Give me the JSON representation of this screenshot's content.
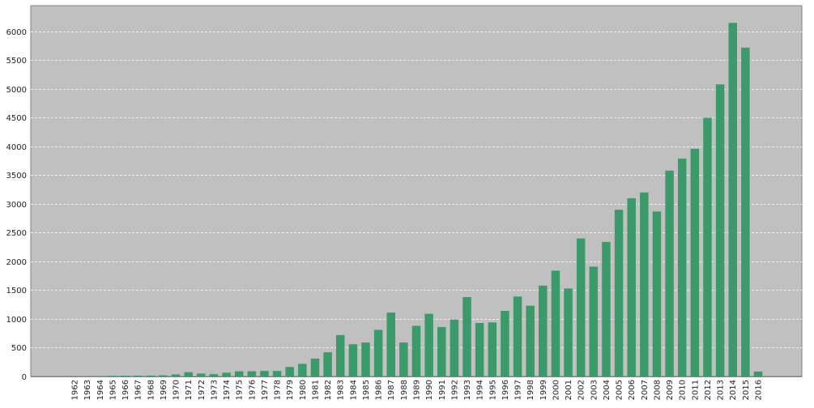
{
  "colors": {
    "plot_background": "#c0c0c0",
    "bar": "#3a9a6a",
    "gridline": "#ffffff",
    "axis": "#808080"
  },
  "chart_data": {
    "type": "bar",
    "title": "",
    "xlabel": "",
    "ylabel": "",
    "ylim": [
      0,
      6450
    ],
    "yticks": [
      0,
      500,
      1000,
      1500,
      2000,
      2500,
      3000,
      3500,
      4000,
      4500,
      5000,
      5500,
      6000
    ],
    "grid": true,
    "legend": "none",
    "categories": [
      "1962",
      "1963",
      "1964",
      "1965",
      "1966",
      "1967",
      "1968",
      "1969",
      "1970",
      "1971",
      "1972",
      "1973",
      "1974",
      "1975",
      "1976",
      "1977",
      "1978",
      "1979",
      "1980",
      "1981",
      "1982",
      "1983",
      "1984",
      "1985",
      "1986",
      "1987",
      "1988",
      "1989",
      "1990",
      "1991",
      "1992",
      "1993",
      "1994",
      "1995",
      "1996",
      "1997",
      "1998",
      "1999",
      "2000",
      "2001",
      "2002",
      "2003",
      "2004",
      "2005",
      "2006",
      "2007",
      "2008",
      "2009",
      "2010",
      "2011",
      "2012",
      "2013",
      "2014",
      "2015",
      "2016"
    ],
    "values": [
      1,
      2,
      3,
      10,
      12,
      13,
      15,
      20,
      35,
      75,
      50,
      40,
      65,
      90,
      90,
      95,
      95,
      165,
      220,
      310,
      420,
      720,
      560,
      590,
      810,
      1110,
      590,
      880,
      1090,
      860,
      990,
      1380,
      930,
      940,
      1140,
      1390,
      1230,
      1580,
      1840,
      1530,
      2400,
      1910,
      2340,
      2900,
      3100,
      3200,
      2870,
      3580,
      3790,
      3960,
      4500,
      5080,
      6150,
      5720,
      85
    ]
  }
}
